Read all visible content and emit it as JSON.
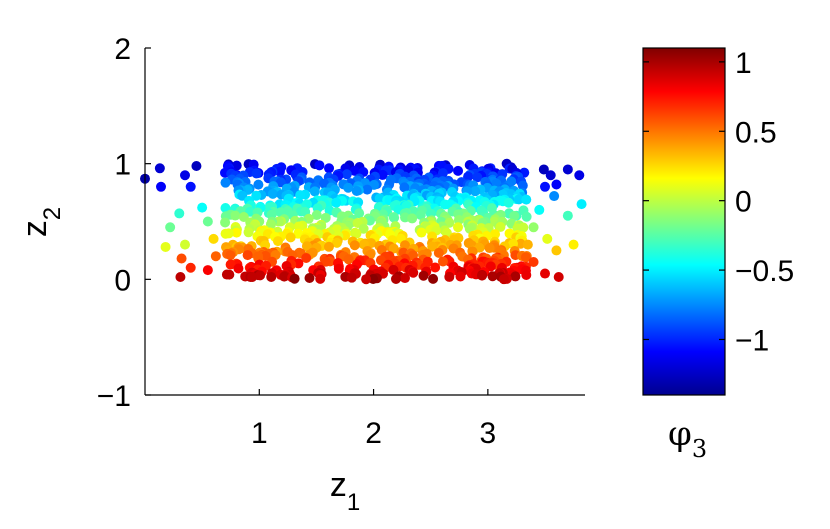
{
  "chart_data": {
    "type": "scatter",
    "title": "",
    "xlabel": "z",
    "xlabel_sub": "1",
    "ylabel": "z",
    "ylabel_sub": "2",
    "xlim": [
      0,
      3.85
    ],
    "ylim": [
      -1,
      2
    ],
    "xticks": [
      1,
      2,
      3
    ],
    "yticks": [
      -1,
      0,
      1,
      2
    ],
    "xtick_labels": [
      "1",
      "2",
      "3"
    ],
    "ytick_labels": [
      "−1",
      "0",
      "1",
      "2"
    ],
    "grid": false,
    "color_variable": "φ",
    "color_variable_sub": "3",
    "colormap": "jet",
    "colorbar": {
      "clim": [
        -1.4,
        1.1
      ],
      "ticks": [
        -1,
        -0.5,
        0,
        0.5,
        1
      ],
      "tick_labels": [
        "−1",
        "−0.5",
        "0",
        "0.5",
        "1"
      ]
    },
    "points_description_note": "",
    "series": [
      {
        "points": [
          [
            0.0,
            0.87,
            -1.3
          ],
          [
            0.13,
            0.96,
            -1.2
          ],
          [
            0.14,
            0.8,
            -1.1
          ],
          [
            0.35,
            0.9,
            -1.15
          ],
          [
            0.4,
            0.8,
            -1.05
          ],
          [
            0.45,
            0.98,
            -1.25
          ],
          [
            0.3,
            0.57,
            -0.35
          ],
          [
            0.22,
            0.45,
            -0.2
          ],
          [
            0.18,
            0.28,
            0.1
          ],
          [
            0.35,
            0.3,
            0.05
          ],
          [
            0.32,
            0.18,
            0.6
          ],
          [
            0.4,
            0.1,
            0.7
          ],
          [
            0.31,
            0.02,
            0.95
          ],
          [
            0.5,
            0.62,
            -0.45
          ],
          [
            0.55,
            0.5,
            -0.2
          ],
          [
            0.6,
            0.35,
            0.25
          ],
          [
            0.62,
            0.2,
            0.55
          ],
          [
            0.55,
            0.08,
            0.8
          ],
          [
            3.49,
            0.95,
            -1.25
          ],
          [
            3.55,
            0.9,
            -1.2
          ],
          [
            3.6,
            0.82,
            -1.1
          ],
          [
            3.7,
            0.95,
            -1.2
          ],
          [
            3.8,
            0.9,
            -1.15
          ],
          [
            3.5,
            0.8,
            -1.05
          ],
          [
            3.45,
            0.6,
            -0.45
          ],
          [
            3.58,
            0.72,
            -0.75
          ],
          [
            3.7,
            0.55,
            -0.3
          ],
          [
            3.82,
            0.65,
            -0.5
          ],
          [
            3.4,
            0.45,
            -0.1
          ],
          [
            3.52,
            0.35,
            0.1
          ],
          [
            3.6,
            0.25,
            0.3
          ],
          [
            3.75,
            0.3,
            0.2
          ],
          [
            3.4,
            0.15,
            0.65
          ],
          [
            3.5,
            0.05,
            0.85
          ],
          [
            3.62,
            0.02,
            0.9
          ],
          [
            3.3,
            0.1,
            0.75
          ],
          [
            3.35,
            0.3,
            0.35
          ],
          [
            3.25,
            0.55,
            -0.3
          ],
          [
            3.3,
            0.75,
            -0.8
          ],
          [
            3.25,
            0.92,
            -1.15
          ]
        ]
      }
    ]
  }
}
